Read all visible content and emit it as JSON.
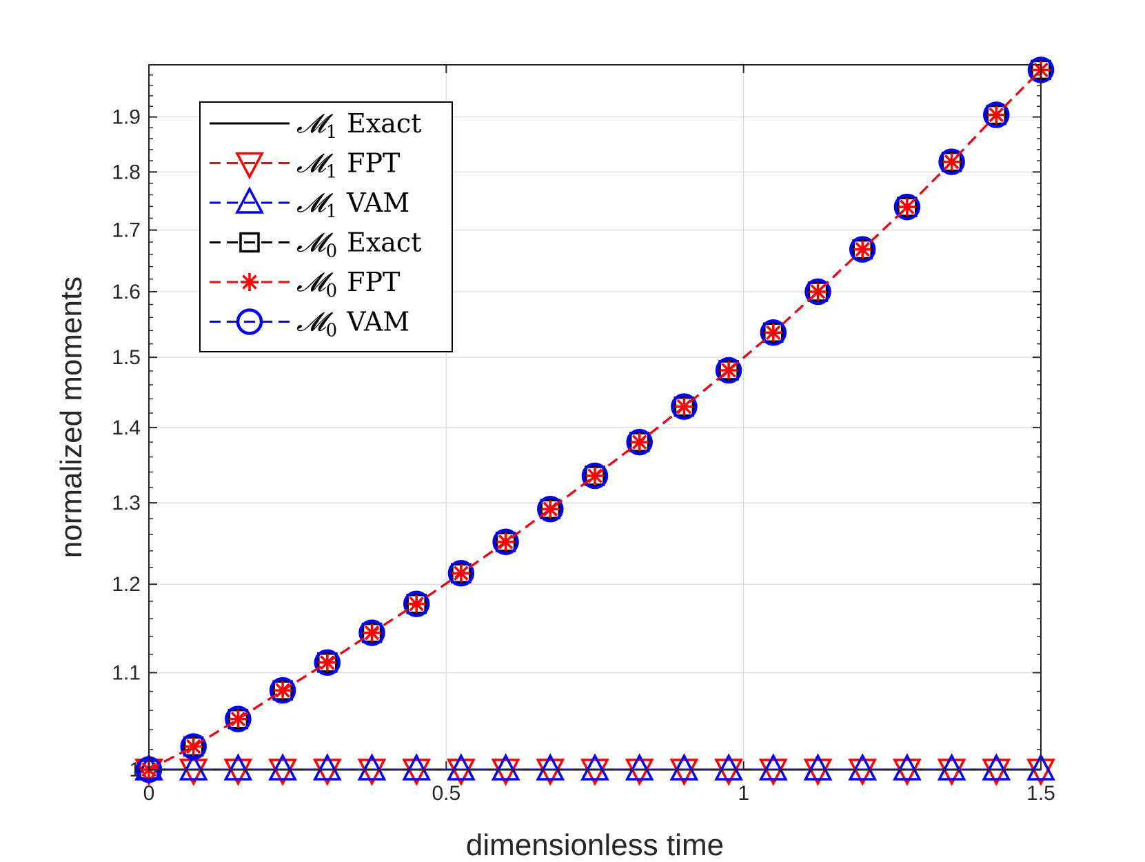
{
  "chart_data": {
    "type": "line",
    "xlabel": "dimensionless time",
    "ylabel": "normalized moments",
    "xlim": [
      0,
      1.5
    ],
    "ylim": [
      1.0,
      2.0
    ],
    "y_scale": "log",
    "grid": true,
    "legend_position": "top-left",
    "x_ticks": [
      0,
      0.5,
      1,
      1.5
    ],
    "x_tick_labels": [
      "0",
      "0.5",
      "1",
      "1.5"
    ],
    "y_ticks": [
      1,
      1.1,
      1.2,
      1.3,
      1.4,
      1.5,
      1.6,
      1.7,
      1.8,
      1.9
    ],
    "y_tick_labels": [
      "1",
      "1.1",
      "1.2",
      "1.3",
      "1.4",
      "1.5",
      "1.6",
      "1.7",
      "1.8",
      "1.9"
    ],
    "x": [
      0,
      0.075,
      0.15,
      0.225,
      0.3,
      0.375,
      0.45,
      0.525,
      0.6,
      0.675,
      0.75,
      0.825,
      0.9,
      0.975,
      1.05,
      1.125,
      1.2,
      1.275,
      1.35,
      1.425,
      1.5
    ],
    "series": [
      {
        "name": "M1 Exact",
        "color": "#000000",
        "line": "solid",
        "marker": "none",
        "values": [
          1,
          1,
          1,
          1,
          1,
          1,
          1,
          1,
          1,
          1,
          1,
          1,
          1,
          1,
          1,
          1,
          1,
          1,
          1,
          1,
          1
        ]
      },
      {
        "name": "M1 FPT",
        "color": "#ff0000",
        "line": "dashed",
        "marker": "triangle-down",
        "values": [
          1,
          1,
          1,
          1,
          1,
          1,
          1,
          1,
          1,
          1,
          1,
          1,
          1,
          1,
          1,
          1,
          1,
          1,
          1,
          1,
          1
        ]
      },
      {
        "name": "M1 VAM",
        "color": "#0000ff",
        "line": "dashed",
        "marker": "triangle-up",
        "values": [
          1,
          1,
          1,
          1,
          1,
          1,
          1,
          1,
          1,
          1,
          1,
          1,
          1,
          1,
          1,
          1,
          1,
          1,
          1,
          1,
          1
        ]
      },
      {
        "name": "M0 Exact",
        "color": "#000000",
        "line": "dashed",
        "marker": "square",
        "values": [
          1,
          1.023,
          1.051,
          1.081,
          1.111,
          1.144,
          1.177,
          1.213,
          1.251,
          1.292,
          1.335,
          1.38,
          1.429,
          1.481,
          1.537,
          1.6,
          1.668,
          1.739,
          1.818,
          1.904,
          1.99
        ]
      },
      {
        "name": "M0 FPT",
        "color": "#ff0000",
        "line": "dashed",
        "marker": "asterisk",
        "values": [
          1,
          1.023,
          1.051,
          1.081,
          1.111,
          1.144,
          1.177,
          1.213,
          1.251,
          1.292,
          1.335,
          1.38,
          1.429,
          1.481,
          1.537,
          1.6,
          1.668,
          1.739,
          1.818,
          1.904,
          1.99
        ]
      },
      {
        "name": "M0 VAM",
        "color": "#0000ff",
        "line": "dashed",
        "marker": "circle",
        "values": [
          1,
          1.023,
          1.051,
          1.081,
          1.111,
          1.144,
          1.177,
          1.213,
          1.251,
          1.292,
          1.335,
          1.38,
          1.429,
          1.481,
          1.537,
          1.6,
          1.668,
          1.739,
          1.818,
          1.904,
          1.99
        ]
      }
    ],
    "legend": [
      {
        "symbol": "𝓜",
        "sub": "1",
        "text": "Exact"
      },
      {
        "symbol": "𝓜",
        "sub": "1",
        "text": "FPT"
      },
      {
        "symbol": "𝓜",
        "sub": "1",
        "text": "VAM"
      },
      {
        "symbol": "𝓜",
        "sub": "0",
        "text": "Exact"
      },
      {
        "symbol": "𝓜",
        "sub": "0",
        "text": "FPT"
      },
      {
        "symbol": "𝓜",
        "sub": "0",
        "text": "VAM"
      }
    ]
  }
}
